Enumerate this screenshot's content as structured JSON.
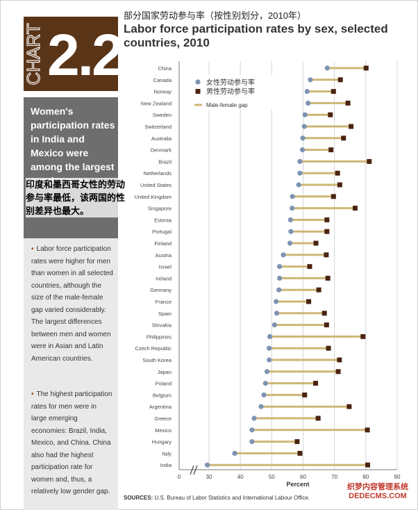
{
  "header": {
    "chart_word": "CHART",
    "chart_number": "2.2",
    "cn_title": "部分国家劳动参与率（按性别划分，2010年）",
    "en_title": "Labor force participation rates by sex, selected countries, 2010"
  },
  "sidebar": {
    "headline": "Women's participation rates in India and Mexico were among the largest gender gaps.",
    "cn_overlay": "印度和墨西哥女性的劳动参与率最低，该两国的性别差异也最大。",
    "bullets": [
      "Labor force participation rates were higher for men than women in all selected countries, although the size of the male-female gap varied considerably. The largest differences between men and women were in Asian and Latin American countries.",
      "The highest participation rates for men were in large emerging economies: Brazil, India, Mexico, and China. China also had the highest participation rate for women and, thus, a relatively low gender gap."
    ]
  },
  "sources": {
    "label": "SOURCES:",
    "text": "U.S. Bureau of Labor Statistics and International Labour Office."
  },
  "watermark": {
    "line1": "织梦内容管理系统",
    "line2": "DEDECMS.COM"
  },
  "colors": {
    "female": "#7d93b3",
    "male": "#4a2410",
    "gap": "#cdb676",
    "chart_tag_bg": "#5a3417",
    "sidebar_dark": "#6e6e6e",
    "sidebar_light": "#e9e9e9"
  },
  "chart_data": {
    "type": "dumbbell",
    "xlabel": "Percent",
    "xlim": [
      0,
      90
    ],
    "xticks": [
      0,
      30,
      40,
      50,
      60,
      70,
      80,
      90
    ],
    "axis_break": true,
    "legend": [
      "女性劳动参与率",
      "男性劳动参与率",
      "Male-female gap"
    ],
    "legend_position": "top-left",
    "grid": "vertical",
    "categories": [
      "China",
      "Canada",
      "Norway",
      "New Zealand",
      "Sweden",
      "Switzerland",
      "Australia",
      "Denmark",
      "Brazil",
      "Netherlands",
      "United States",
      "United Kingdom",
      "Singapore",
      "Estonia",
      "Portugal",
      "Finland",
      "Austria",
      "Israel",
      "Ireland",
      "Germany",
      "France",
      "Spain",
      "Slovakia",
      "Philippines",
      "Czech Republic",
      "South Korea",
      "Japan",
      "Poland",
      "Belgium",
      "Argentina",
      "Greece",
      "Mexico",
      "Hungary",
      "Italy",
      "India"
    ],
    "series": [
      {
        "name": "女性劳动参与率",
        "values": [
          67.7,
          62.3,
          61.3,
          61.6,
          60.6,
          60.4,
          59.9,
          59.8,
          59.0,
          59.0,
          58.6,
          56.6,
          56.5,
          56.0,
          56.1,
          55.8,
          53.7,
          52.5,
          52.5,
          52.3,
          51.4,
          51.6,
          50.9,
          49.4,
          49.2,
          49.2,
          48.5,
          48.0,
          47.5,
          46.6,
          44.4,
          43.7,
          43.7,
          38.2,
          28.3
        ]
      },
      {
        "name": "男性劳动参与率",
        "values": [
          80.1,
          71.9,
          69.7,
          74.3,
          68.7,
          75.3,
          72.9,
          68.9,
          81.1,
          71.0,
          71.7,
          69.7,
          76.6,
          67.6,
          67.6,
          64.1,
          67.4,
          62.1,
          67.9,
          65.0,
          61.8,
          66.8,
          67.5,
          79.1,
          68.1,
          71.6,
          71.2,
          64.0,
          60.5,
          74.7,
          64.8,
          80.5,
          58.1,
          59.0,
          80.6
        ]
      }
    ]
  }
}
